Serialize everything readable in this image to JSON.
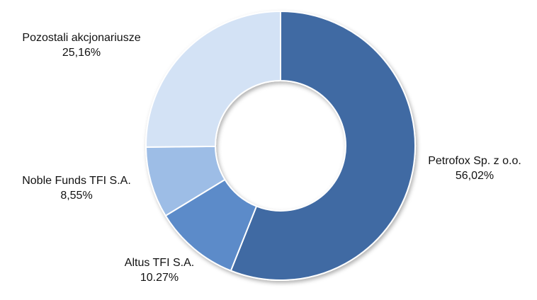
{
  "chart_data": {
    "type": "donut",
    "categories": [
      "Petrofox Sp. z o.o.",
      "Altus TFI S.A.",
      "Noble Funds TFI S.A.",
      "Pozostali akcjonariusze"
    ],
    "values": [
      56.02,
      10.27,
      8.55,
      25.16
    ],
    "value_labels": [
      "56,02%",
      "10.27%",
      "8,55%",
      "25,16%"
    ],
    "colors": [
      "#3f6aa3",
      "#5b8bc9",
      "#9dbde6",
      "#d3e2f5"
    ]
  }
}
